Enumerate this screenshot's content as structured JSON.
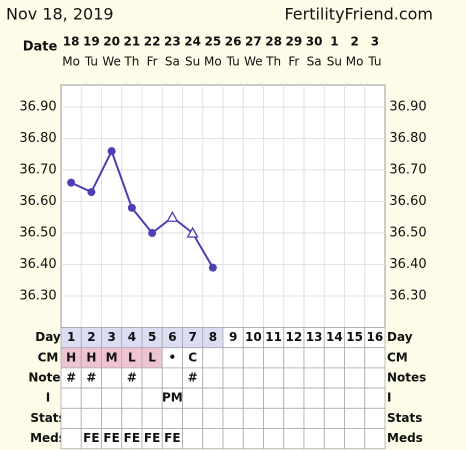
{
  "chart_data": {
    "type": "line",
    "title": "Nov 18, 2019",
    "site": "FertilityFriend.com",
    "date_label": "Date",
    "categories": [
      "18",
      "19",
      "20",
      "21",
      "22",
      "23",
      "24",
      "25",
      "26",
      "27",
      "28",
      "29",
      "30",
      "1",
      "2",
      "3"
    ],
    "weekdays": [
      "Mo",
      "Tu",
      "We",
      "Th",
      "Fr",
      "Sa",
      "Su",
      "Mo",
      "Tu",
      "We",
      "Th",
      "Fr",
      "Sa",
      "Su",
      "Mo",
      "Tu"
    ],
    "series": [
      {
        "color": "#4b3fb5",
        "values": [
          36.66,
          36.63,
          36.76,
          36.58,
          36.5,
          36.55,
          36.5,
          36.39,
          null,
          null,
          null,
          null,
          null,
          null,
          null,
          null
        ],
        "markers": [
          "circle",
          "circle",
          "circle",
          "circle",
          "circle",
          "triangle",
          "triangle",
          "circle",
          null,
          null,
          null,
          null,
          null,
          null,
          null,
          null
        ]
      }
    ],
    "ylim": [
      36.2,
      36.97
    ],
    "yticks": [
      {
        "value": 36.3,
        "label": "36.30"
      },
      {
        "value": 36.4,
        "label": "36.40"
      },
      {
        "value": 36.5,
        "label": "36.50"
      },
      {
        "value": 36.6,
        "label": "36.60"
      },
      {
        "value": 36.7,
        "label": "36.70"
      },
      {
        "value": 36.8,
        "label": "36.80"
      },
      {
        "value": 36.9,
        "label": "36.90"
      }
    ],
    "grid": true
  },
  "table": {
    "rows": [
      {
        "label": "Day",
        "cells": [
          1,
          2,
          3,
          4,
          5,
          6,
          7,
          8,
          9,
          10,
          11,
          12,
          13,
          14,
          15,
          16
        ],
        "cell_colors": [
          "#dcdcf2",
          "#dcdcf2",
          "#dcdcf2",
          "#dcdcf2",
          "#dcdcf2",
          "#dcdcf2",
          "#dcdcf2",
          "#dcdcf2",
          null,
          null,
          null,
          null,
          null,
          null,
          null,
          null
        ]
      },
      {
        "label": "CM",
        "cells": [
          "H",
          "H",
          "M",
          "L",
          "L",
          "•",
          "C",
          null,
          null,
          null,
          null,
          null,
          null,
          null,
          null,
          null
        ],
        "cell_colors": [
          "#efc4d2",
          "#efc4d2",
          "#efc4d2",
          "#efc4d2",
          "#efc4d2",
          null,
          null,
          null,
          null,
          null,
          null,
          null,
          null,
          null,
          null,
          null
        ]
      },
      {
        "label": "Notes",
        "cells": [
          "#",
          "#",
          null,
          "#",
          null,
          null,
          "#",
          null,
          null,
          null,
          null,
          null,
          null,
          null,
          null,
          null
        ]
      },
      {
        "label": "I",
        "cells": [
          null,
          null,
          null,
          null,
          null,
          "PM",
          null,
          null,
          null,
          null,
          null,
          null,
          null,
          null,
          null,
          null
        ]
      },
      {
        "label": "Stats",
        "cells": [
          null,
          null,
          null,
          null,
          null,
          null,
          null,
          null,
          null,
          null,
          null,
          null,
          null,
          null,
          null,
          null
        ]
      },
      {
        "label": "Meds",
        "cells": [
          null,
          "FE",
          "FE",
          "FE",
          "FE",
          "FE",
          null,
          null,
          null,
          null,
          null,
          null,
          null,
          null,
          null,
          null
        ]
      }
    ]
  }
}
